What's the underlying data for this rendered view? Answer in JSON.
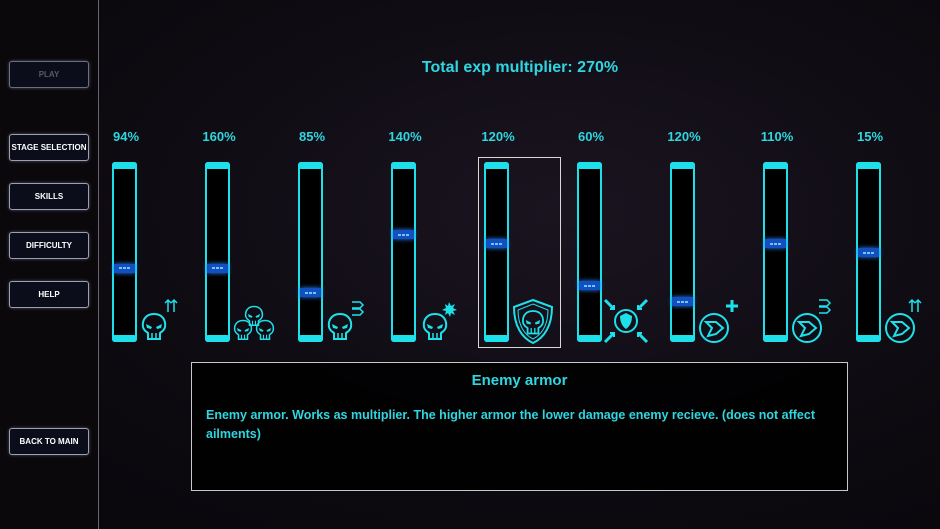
{
  "sidebar": {
    "play": "PLAY",
    "stage_selection": "STAGE SELECTION",
    "skills": "SKILLS",
    "difficulty": "DIFFICULTY",
    "help": "HELP",
    "back_to_main": "BACK TO MAIN"
  },
  "header": {
    "total_label": "Total exp multiplier:  270%"
  },
  "accent_color": "#1ee0ea",
  "selected_index": 4,
  "sliders": [
    {
      "value": "94%",
      "level": 0.41,
      "icon": "skull-arrows-up-icon"
    },
    {
      "value": "160%",
      "level": 0.41,
      "icon": "skull-group-icon"
    },
    {
      "value": "85%",
      "level": 0.27,
      "icon": "skull-speed-icon"
    },
    {
      "value": "140%",
      "level": 0.6,
      "icon": "skull-explosion-icon"
    },
    {
      "value": "120%",
      "level": 0.55,
      "icon": "skull-shield-icon"
    },
    {
      "value": "60%",
      "level": 0.31,
      "icon": "shield-inward-arrows-icon"
    },
    {
      "value": "120%",
      "level": 0.22,
      "icon": "projectile-plus-icon"
    },
    {
      "value": "110%",
      "level": 0.55,
      "icon": "projectile-speed-icon"
    },
    {
      "value": "15%",
      "level": 0.5,
      "icon": "projectile-arrows-up-icon"
    }
  ],
  "description": {
    "title": "Enemy armor",
    "text": "Enemy armor. Works as multiplier. The higher armor the lower damage enemy recieve. (does not affect ailments)"
  }
}
